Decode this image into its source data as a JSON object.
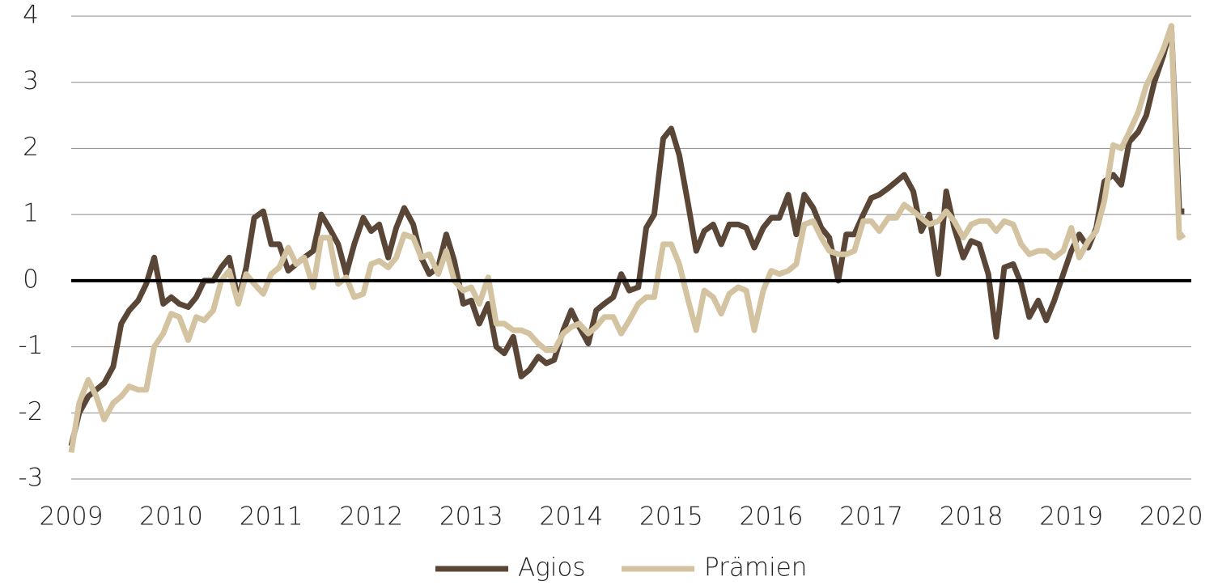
{
  "chart_data": {
    "type": "line",
    "x": [
      2009,
      2009.08,
      2009.17,
      2009.25,
      2009.33,
      2009.42,
      2009.5,
      2009.58,
      2009.67,
      2009.75,
      2009.83,
      2009.92,
      2010,
      2010.08,
      2010.17,
      2010.25,
      2010.33,
      2010.42,
      2010.5,
      2010.58,
      2010.67,
      2010.75,
      2010.83,
      2010.92,
      2011,
      2011.08,
      2011.17,
      2011.25,
      2011.33,
      2011.42,
      2011.5,
      2011.58,
      2011.67,
      2011.75,
      2011.83,
      2011.92,
      2012,
      2012.08,
      2012.17,
      2012.25,
      2012.33,
      2012.42,
      2012.5,
      2012.58,
      2012.67,
      2012.75,
      2012.83,
      2012.92,
      2013,
      2013.08,
      2013.17,
      2013.25,
      2013.33,
      2013.42,
      2013.5,
      2013.58,
      2013.67,
      2013.75,
      2013.83,
      2013.92,
      2014,
      2014.08,
      2014.17,
      2014.25,
      2014.33,
      2014.42,
      2014.5,
      2014.58,
      2014.67,
      2014.75,
      2014.83,
      2014.92,
      2015,
      2015.08,
      2015.17,
      2015.25,
      2015.33,
      2015.42,
      2015.5,
      2015.58,
      2015.67,
      2015.75,
      2015.83,
      2015.92,
      2016,
      2016.08,
      2016.17,
      2016.25,
      2016.33,
      2016.42,
      2016.5,
      2016.58,
      2016.67,
      2016.75,
      2016.83,
      2016.92,
      2017,
      2017.08,
      2017.17,
      2017.25,
      2017.33,
      2017.42,
      2017.5,
      2017.58,
      2017.67,
      2017.75,
      2017.83,
      2017.92,
      2018,
      2018.08,
      2018.17,
      2018.25,
      2018.33,
      2018.42,
      2018.5,
      2018.58,
      2018.67,
      2018.75,
      2018.83,
      2018.92,
      2019,
      2019.08,
      2019.17,
      2019.25,
      2019.33,
      2019.42,
      2019.5,
      2019.58,
      2019.67,
      2019.75,
      2019.83,
      2019.92,
      2020,
      2020.08,
      2020.13
    ],
    "series": [
      {
        "name": "Agios",
        "color": "#5a4636",
        "values": [
          -2.5,
          -2.0,
          -1.75,
          -1.65,
          -1.55,
          -1.3,
          -0.65,
          -0.45,
          -0.3,
          -0.05,
          0.35,
          -0.35,
          -0.25,
          -0.35,
          -0.4,
          -0.25,
          0,
          0,
          0.2,
          0.35,
          -0.3,
          0.2,
          0.95,
          1.05,
          0.55,
          0.55,
          0.15,
          0.25,
          0.35,
          0.45,
          1.0,
          0.8,
          0.55,
          0.1,
          0.55,
          0.95,
          0.75,
          0.85,
          0.35,
          0.8,
          1.1,
          0.85,
          0.35,
          0.1,
          0.2,
          0.7,
          0.3,
          -0.35,
          -0.3,
          -0.65,
          -0.35,
          -1.0,
          -1.1,
          -0.85,
          -1.45,
          -1.35,
          -1.15,
          -1.25,
          -1.2,
          -0.75,
          -0.45,
          -0.7,
          -0.95,
          -0.45,
          -0.35,
          -0.25,
          0.1,
          -0.15,
          -0.1,
          0.8,
          1.0,
          2.15,
          2.3,
          1.9,
          1.15,
          0.45,
          0.75,
          0.85,
          0.55,
          0.85,
          0.85,
          0.8,
          0.5,
          0.8,
          0.95,
          0.95,
          1.3,
          0.7,
          1.3,
          1.1,
          0.8,
          0.65,
          0,
          0.7,
          0.7,
          1.0,
          1.25,
          1.3,
          1.4,
          1.5,
          1.6,
          1.35,
          0.75,
          1.0,
          0.1,
          1.35,
          0.8,
          0.35,
          0.6,
          0.55,
          0.1,
          -0.85,
          0.2,
          0.25,
          -0.05,
          -0.55,
          -0.3,
          -0.6,
          -0.3,
          0.1,
          0.45,
          0.7,
          0.5,
          0.8,
          1.5,
          1.6,
          1.45,
          2.1,
          2.25,
          2.5,
          3.0,
          3.4,
          3.85,
          1.05,
          1.05
        ]
      },
      {
        "name": "Prämien",
        "color": "#d4c3a0",
        "values": [
          -2.6,
          -1.85,
          -1.5,
          -1.75,
          -2.1,
          -1.85,
          -1.75,
          -1.6,
          -1.65,
          -1.65,
          -1.0,
          -0.8,
          -0.5,
          -0.55,
          -0.9,
          -0.55,
          -0.6,
          -0.45,
          0,
          0.15,
          -0.35,
          0.1,
          -0.05,
          -0.2,
          0.1,
          0.2,
          0.5,
          0.25,
          0.35,
          -0.1,
          0.65,
          0.65,
          -0.05,
          0.05,
          -0.25,
          -0.2,
          0.25,
          0.3,
          0.2,
          0.35,
          0.7,
          0.65,
          0.35,
          0.4,
          0.1,
          0.45,
          0,
          -0.15,
          -0.1,
          -0.35,
          0.05,
          -0.65,
          -0.65,
          -0.75,
          -0.75,
          -0.8,
          -0.95,
          -1.05,
          -1.05,
          -0.8,
          -0.7,
          -0.65,
          -0.8,
          -0.7,
          -0.55,
          -0.55,
          -0.8,
          -0.6,
          -0.35,
          -0.25,
          -0.25,
          0.55,
          0.55,
          0.25,
          -0.3,
          -0.75,
          -0.15,
          -0.25,
          -0.5,
          -0.2,
          -0.1,
          -0.15,
          -0.75,
          -0.15,
          0.15,
          0.1,
          0.15,
          0.25,
          0.85,
          0.9,
          0.65,
          0.45,
          0.4,
          0.4,
          0.45,
          0.9,
          0.9,
          0.75,
          0.95,
          0.95,
          1.15,
          1.05,
          0.95,
          0.85,
          0.9,
          1.05,
          0.9,
          0.65,
          0.85,
          0.9,
          0.9,
          0.75,
          0.9,
          0.85,
          0.55,
          0.4,
          0.45,
          0.45,
          0.35,
          0.45,
          0.8,
          0.35,
          0.6,
          0.75,
          1.2,
          2.05,
          2.0,
          2.25,
          2.55,
          2.95,
          3.2,
          3.5,
          3.85,
          0.65,
          0.7
        ]
      }
    ],
    "xlim": [
      2009,
      2020.2
    ],
    "xticks": [
      2009,
      2010,
      2011,
      2012,
      2013,
      2014,
      2015,
      2016,
      2017,
      2018,
      2019,
      2020
    ],
    "ylim": [
      -3,
      4
    ],
    "yticks": [
      -3,
      -2,
      -1,
      0,
      1,
      2,
      3,
      4
    ],
    "grid": true,
    "legend": "bottom"
  }
}
